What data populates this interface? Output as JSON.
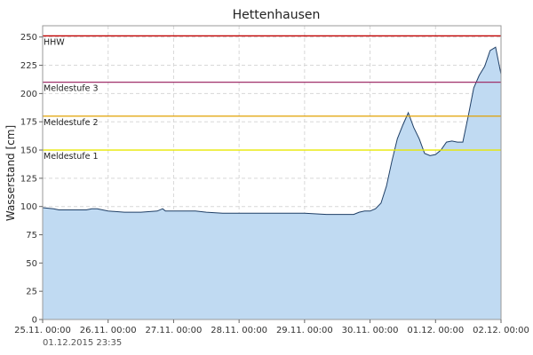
{
  "chart_data": {
    "type": "area",
    "title": "Hettenhausen",
    "ylabel": "Wasserstand [cm]",
    "xlabel": "",
    "ylim": [
      0,
      260
    ],
    "yticks": [
      0,
      25,
      50,
      75,
      100,
      125,
      150,
      175,
      200,
      225,
      250
    ],
    "xlim": [
      "25.11. 00:00",
      "02.12. 00:00"
    ],
    "xticks": [
      "25.11. 00:00",
      "26.11. 00:00",
      "27.11. 00:00",
      "28.11. 00:00",
      "29.11. 00:00",
      "30.11. 00:00",
      "01.12. 00:00",
      "02.12. 00:00"
    ],
    "grid": true,
    "colors": {
      "fill": "#c0daf2",
      "line": "#1f3f66"
    },
    "thresholds": [
      {
        "label": "HHW",
        "value": 251,
        "color": "#c00000"
      },
      {
        "label": "Meldestufe 3",
        "value": 210,
        "color": "#a0306a"
      },
      {
        "label": "Meldestufe 2",
        "value": 180,
        "color": "#e0a000"
      },
      {
        "label": "Meldestufe 1",
        "value": 150,
        "color": "#e8e800"
      }
    ],
    "series": [
      {
        "x": [
          "25.11. 00:00",
          "25.11. 04:00",
          "25.11. 06:00",
          "25.11. 12:00",
          "25.11. 16:00",
          "25.11. 18:00",
          "25.11. 20:00",
          "26.11. 00:00",
          "26.11. 06:00",
          "26.11. 12:00",
          "26.11. 18:00",
          "26.11. 20:00",
          "26.11. 21:00",
          "27.11. 00:00",
          "27.11. 08:00",
          "27.11. 12:00",
          "27.11. 18:00",
          "28.11. 00:00",
          "28.11. 12:00",
          "28.11. 18:00",
          "29.11. 00:00",
          "29.11. 08:00",
          "29.11. 10:00",
          "29.11. 14:00",
          "29.11. 18:00",
          "29.11. 20:00",
          "29.11. 22:00",
          "30.11. 00:00",
          "30.11. 02:00",
          "30.11. 04:00",
          "30.11. 06:00",
          "30.11. 08:00",
          "30.11. 10:00",
          "30.11. 12:00",
          "30.11. 14:00",
          "30.11. 16:00",
          "30.11. 18:00",
          "30.11. 20:00",
          "30.11. 22:00",
          "01.12. 00:00",
          "01.12. 02:00",
          "01.12. 04:00",
          "01.12. 06:00",
          "01.12. 08:00",
          "01.12. 10:00",
          "01.12. 12:00",
          "01.12. 14:00",
          "01.12. 16:00",
          "01.12. 18:00",
          "01.12. 20:00",
          "01.12. 22:00",
          "02.12. 00:00"
        ],
        "values": [
          99,
          98,
          97,
          97,
          97,
          98,
          98,
          96,
          95,
          95,
          96,
          98,
          96,
          96,
          96,
          95,
          94,
          94,
          94,
          94,
          94,
          93,
          93,
          93,
          93,
          95,
          96,
          96,
          98,
          103,
          118,
          140,
          160,
          172,
          183,
          170,
          160,
          147,
          145,
          146,
          150,
          157,
          158,
          157,
          157,
          180,
          205,
          216,
          224,
          238,
          241,
          217
        ]
      }
    ],
    "timestamp": "01.12.2015  23:35"
  }
}
